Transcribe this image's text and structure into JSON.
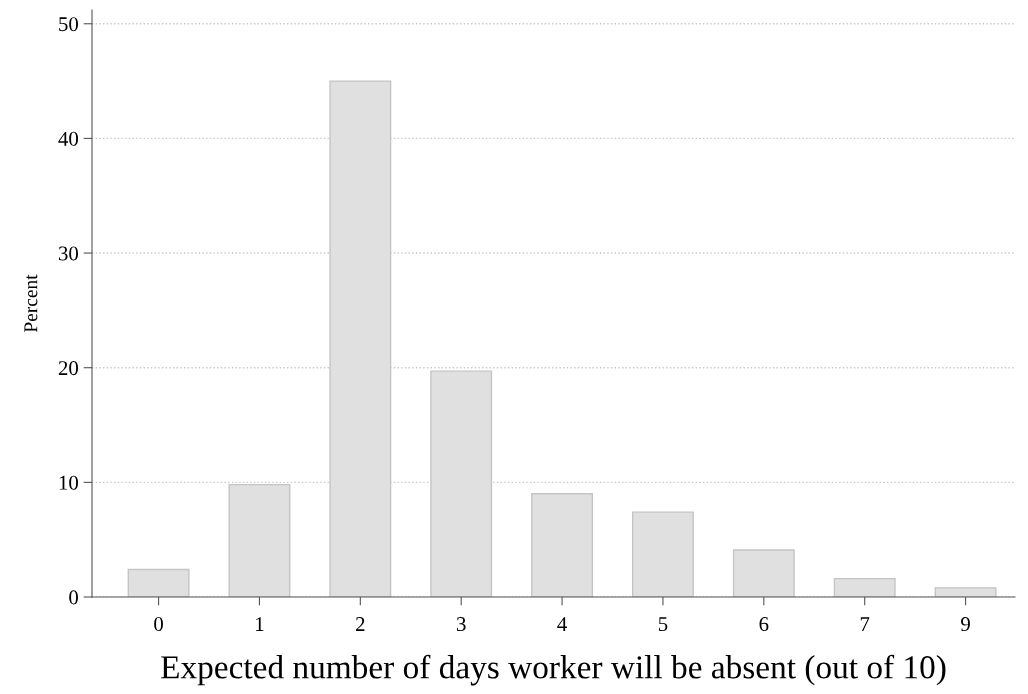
{
  "chart_data": {
    "type": "bar",
    "xlabel": "Expected number of days worker will be absent (out of 10)",
    "ylabel": "Percent",
    "categories": [
      "0",
      "1",
      "2",
      "3",
      "4",
      "5",
      "6",
      "7",
      "9"
    ],
    "values": [
      2.4,
      9.8,
      45.0,
      19.7,
      9.0,
      7.4,
      4.1,
      1.6,
      0.8
    ],
    "color": "#e0e0e0",
    "ylim": [
      0,
      51.2
    ],
    "yticks": [
      0,
      10,
      20,
      30,
      40,
      50
    ],
    "grid": "y"
  }
}
